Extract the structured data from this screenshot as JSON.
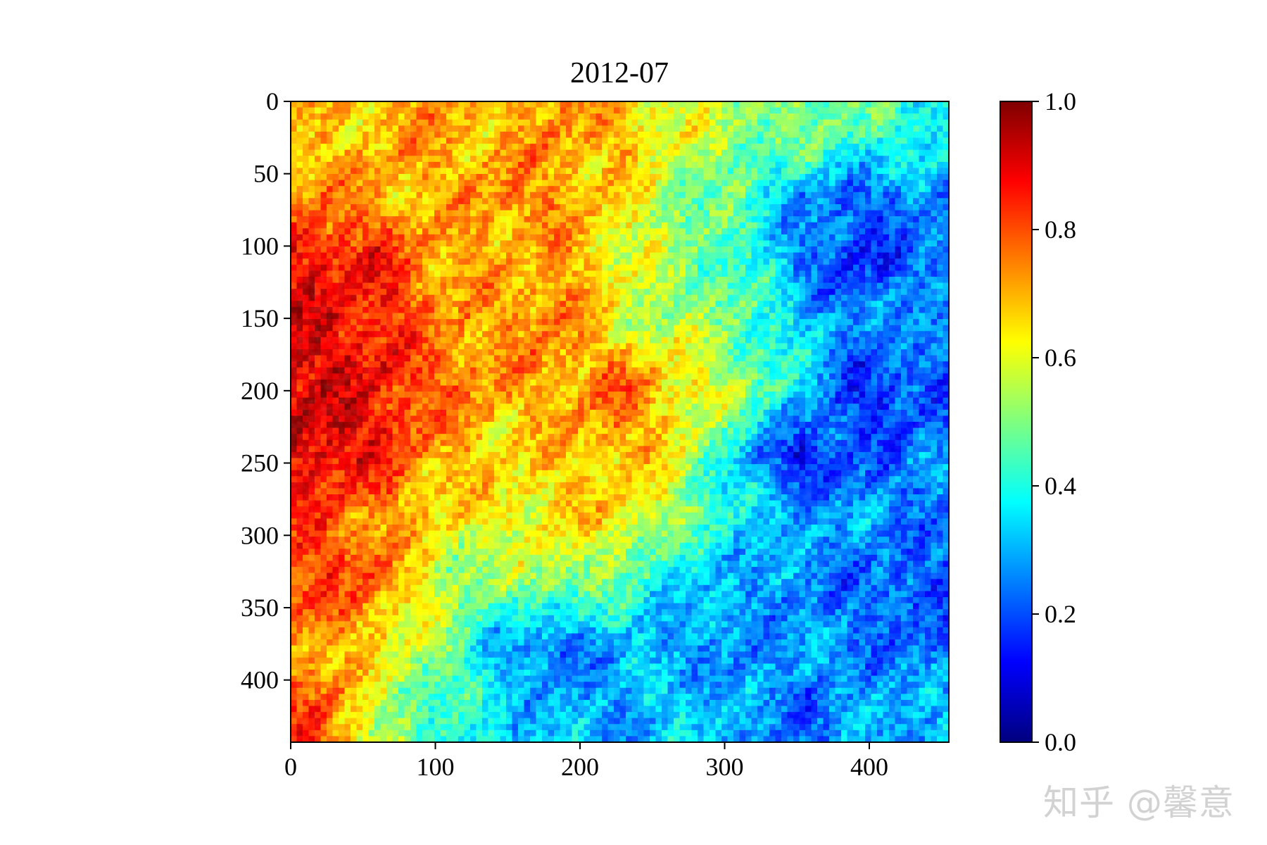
{
  "chart_data": {
    "type": "heatmap",
    "title": "2012-07",
    "xlabel": "",
    "ylabel": "",
    "colormap": "jet",
    "colormap_stops": [
      "#00007f",
      "#0000ff",
      "#007fff",
      "#00ffff",
      "#7fff7f",
      "#ffff00",
      "#ff7f00",
      "#ff0000",
      "#7f0000"
    ],
    "grid": false,
    "image_size": {
      "columns": 455,
      "rows": 443
    },
    "xlim": [
      0,
      455
    ],
    "ylim": [
      443,
      0
    ],
    "x_ticks": [
      0,
      100,
      200,
      300,
      400
    ],
    "x_tick_labels": [
      "0",
      "100",
      "200",
      "300",
      "400"
    ],
    "y_ticks": [
      0,
      50,
      100,
      150,
      200,
      250,
      300,
      350,
      400
    ],
    "y_tick_labels": [
      "0",
      "50",
      "100",
      "150",
      "200",
      "250",
      "300",
      "350",
      "400"
    ],
    "colorbar": {
      "range": [
        0.0,
        1.0
      ],
      "ticks": [
        0.0,
        0.2,
        0.4,
        0.6,
        0.8,
        1.0
      ],
      "tick_labels": [
        "0.0",
        "0.2",
        "0.4",
        "0.6",
        "0.8",
        "1.0"
      ]
    },
    "approx_value_grid": {
      "description": "coarse block means of the field, rows from top (y=0) to bottom, columns from left (x=0) to right",
      "columns": 11,
      "rows": 10,
      "values": [
        [
          0.66,
          0.7,
          0.72,
          0.68,
          0.74,
          0.7,
          0.6,
          0.52,
          0.5,
          0.46,
          0.4
        ],
        [
          0.75,
          0.72,
          0.68,
          0.76,
          0.72,
          0.64,
          0.52,
          0.44,
          0.28,
          0.2,
          0.26
        ],
        [
          0.88,
          0.85,
          0.72,
          0.68,
          0.72,
          0.62,
          0.5,
          0.45,
          0.25,
          0.15,
          0.22
        ],
        [
          0.9,
          0.86,
          0.75,
          0.72,
          0.76,
          0.6,
          0.55,
          0.48,
          0.35,
          0.25,
          0.3
        ],
        [
          0.92,
          0.88,
          0.78,
          0.72,
          0.7,
          0.8,
          0.66,
          0.55,
          0.35,
          0.15,
          0.18
        ],
        [
          0.92,
          0.86,
          0.72,
          0.65,
          0.68,
          0.7,
          0.62,
          0.32,
          0.12,
          0.2,
          0.25
        ],
        [
          0.8,
          0.72,
          0.65,
          0.62,
          0.65,
          0.66,
          0.5,
          0.36,
          0.3,
          0.28,
          0.25
        ],
        [
          0.82,
          0.78,
          0.55,
          0.5,
          0.55,
          0.45,
          0.35,
          0.3,
          0.25,
          0.22,
          0.2
        ],
        [
          0.72,
          0.65,
          0.52,
          0.3,
          0.2,
          0.32,
          0.28,
          0.25,
          0.3,
          0.25,
          0.22
        ],
        [
          0.82,
          0.55,
          0.42,
          0.35,
          0.3,
          0.28,
          0.35,
          0.3,
          0.22,
          0.28,
          0.32
        ]
      ]
    }
  },
  "watermark": {
    "text": "知乎 @馨意"
  }
}
